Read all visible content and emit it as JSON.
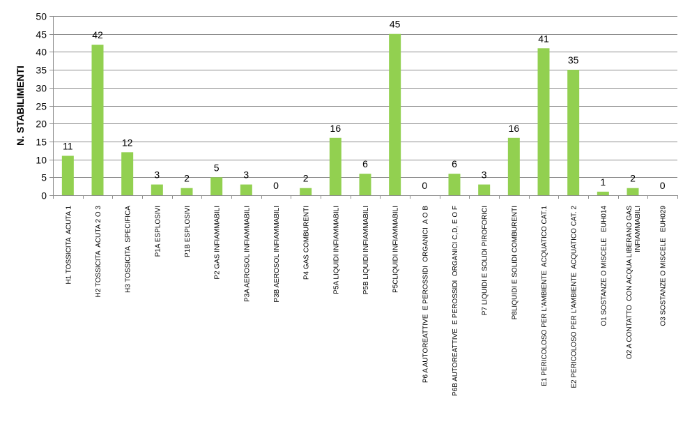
{
  "chart_data": {
    "type": "bar",
    "title": "",
    "xlabel": "",
    "ylabel": "N. STABILIMENTI",
    "ylim": [
      0,
      50
    ],
    "yticks": [
      0,
      5,
      10,
      15,
      20,
      25,
      30,
      35,
      40,
      45,
      50
    ],
    "grid": true,
    "legend": "none",
    "bar_color": "#92d050",
    "grid_color": "#8c8c8c",
    "categories": [
      "H1 TOSSICITA  ACUTA 1",
      "H2 TOSSICITA  ACUTA 2 O 3",
      "H3 TOSSICITA  SPECIFICA",
      "P1A ESPLOSIVI",
      "P1B ESPLOSIVI",
      "P2 GAS INFIAMMABILI",
      "P3A AEROSOL INFIAMMABILI",
      "P3B AEROSOL INFIAMMABILI",
      "P4 GAS COMBURENTI",
      "P5A LIQUIDI INFIAMMABILI",
      "P5B LIQUIDI INFIAMMABILI",
      "P5CLIQUIDI INFIAMMABILI",
      "P6 A AUTOREATTIVE  E PEROSSIDI  ORGANICI  A O B",
      "P6B AUTOREATTIVE  E PEROSSIDI  ORGANICI C,D, E O F",
      "P7 LIQUIDI E SOLIDI PIROFORICI",
      "P8LIQUIDI E SOLIDI COMBURENTI",
      "E1 PERICOLOSO PER L'AMBIENTE  ACQUATICO CAT.1",
      "E2 PERICOLOSO PER L'AMBIENTE  ACQUATICO CAT. 2",
      "O1 SOSTANZE O MISCELE   EUH014",
      "O2 A CONTATTO  CON ACQUA LIBERANO GAS|INFIAMMABILI",
      "O3 SOSTANZE O MISCELE   EUH029"
    ],
    "values": [
      11,
      42,
      12,
      3,
      2,
      5,
      3,
      0,
      2,
      16,
      6,
      45,
      0,
      6,
      3,
      16,
      41,
      35,
      1,
      2,
      0
    ]
  }
}
